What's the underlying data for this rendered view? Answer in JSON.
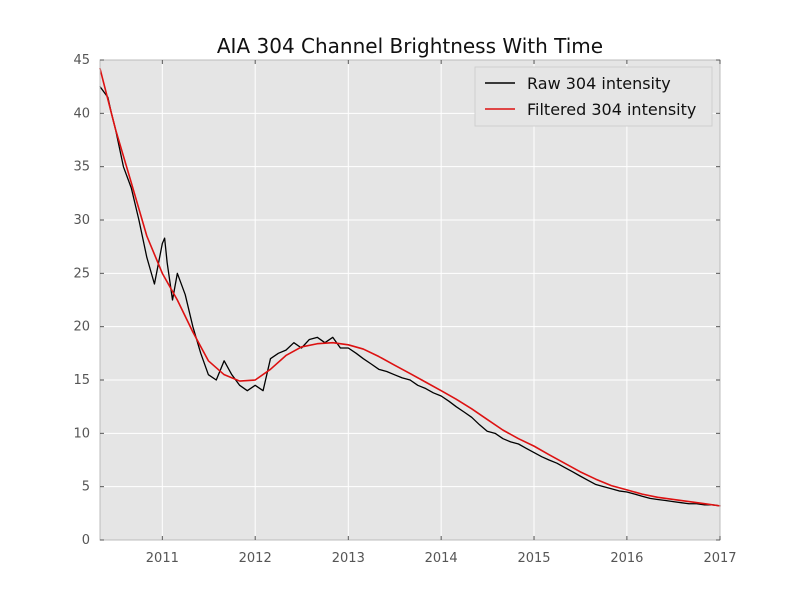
{
  "chart_data": {
    "type": "line",
    "title": "AIA 304 Channel Brightness With Time",
    "xlabel": "",
    "ylabel": "",
    "xlim": [
      "2010-05-01",
      "2017-01-01"
    ],
    "ylim": [
      0,
      45
    ],
    "xticks": [
      "2011",
      "2012",
      "2013",
      "2014",
      "2015",
      "2016",
      "2017"
    ],
    "yticks": [
      "0",
      "5",
      "10",
      "15",
      "20",
      "25",
      "30",
      "35",
      "40",
      "45"
    ],
    "grid": true,
    "legend": "upper right",
    "colors": {
      "raw": "#000000",
      "filtered": "#dd1111",
      "plot_background": "#e5e5e5",
      "grid": "#ffffff"
    },
    "series": [
      {
        "name": "Raw 304 intensity",
        "color": "#000000",
        "x": [
          "2010-05-01",
          "2010-06-01",
          "2010-06-15",
          "2010-07-01",
          "2010-08-01",
          "2010-09-01",
          "2010-10-01",
          "2010-11-01",
          "2010-12-01",
          "2011-01-01",
          "2011-01-10",
          "2011-01-20",
          "2011-02-10",
          "2011-03-01",
          "2011-04-01",
          "2011-05-01",
          "2011-06-01",
          "2011-07-01",
          "2011-08-01",
          "2011-09-01",
          "2011-10-01",
          "2011-11-01",
          "2011-12-01",
          "2012-01-01",
          "2012-02-01",
          "2012-03-01",
          "2012-04-01",
          "2012-05-01",
          "2012-06-01",
          "2012-07-01",
          "2012-08-01",
          "2012-09-01",
          "2012-10-01",
          "2012-11-01",
          "2012-12-01",
          "2013-01-01",
          "2013-02-01",
          "2013-03-01",
          "2013-04-01",
          "2013-05-01",
          "2013-06-01",
          "2013-07-01",
          "2013-08-01",
          "2013-09-01",
          "2013-10-01",
          "2013-11-01",
          "2013-12-01",
          "2014-01-01",
          "2014-02-01",
          "2014-03-01",
          "2014-04-01",
          "2014-05-01",
          "2014-06-01",
          "2014-07-01",
          "2014-08-01",
          "2014-09-01",
          "2014-10-01",
          "2014-11-01",
          "2014-12-01",
          "2015-01-01",
          "2015-02-01",
          "2015-03-01",
          "2015-04-01",
          "2015-05-01",
          "2015-06-01",
          "2015-07-01",
          "2015-08-01",
          "2015-09-01",
          "2015-10-01",
          "2015-11-01",
          "2015-12-01",
          "2016-01-01",
          "2016-02-01",
          "2016-03-01",
          "2016-04-01",
          "2016-05-01",
          "2016-06-01",
          "2016-07-01",
          "2016-08-01",
          "2016-09-01",
          "2016-10-01",
          "2016-11-01",
          "2016-12-01",
          "2017-01-01"
        ],
        "values": [
          42.5,
          41.5,
          40.0,
          38.5,
          35.0,
          33.0,
          30.0,
          26.5,
          24.0,
          27.8,
          28.3,
          26.0,
          22.5,
          25.0,
          23.0,
          20.0,
          17.5,
          15.5,
          15.0,
          16.8,
          15.5,
          14.5,
          14.0,
          14.5,
          14.0,
          17.0,
          17.5,
          17.8,
          18.5,
          18.0,
          18.8,
          19.0,
          18.5,
          19.0,
          18.0,
          18.0,
          17.5,
          17.0,
          16.5,
          16.0,
          15.8,
          15.5,
          15.2,
          15.0,
          14.5,
          14.2,
          13.8,
          13.5,
          13.0,
          12.5,
          12.0,
          11.5,
          10.8,
          10.2,
          10.0,
          9.5,
          9.2,
          9.0,
          8.6,
          8.2,
          7.8,
          7.5,
          7.2,
          6.8,
          6.4,
          6.0,
          5.6,
          5.2,
          5.0,
          4.8,
          4.6,
          4.5,
          4.3,
          4.1,
          3.9,
          3.8,
          3.7,
          3.6,
          3.5,
          3.4,
          3.4,
          3.3,
          3.3,
          3.2
        ]
      },
      {
        "name": "Filtered 304 intensity",
        "color": "#dd1111",
        "x": [
          "2010-05-01",
          "2010-07-01",
          "2010-09-01",
          "2010-11-01",
          "2011-01-01",
          "2011-03-01",
          "2011-05-01",
          "2011-07-01",
          "2011-09-01",
          "2011-11-01",
          "2012-01-01",
          "2012-03-01",
          "2012-05-01",
          "2012-07-01",
          "2012-09-01",
          "2012-11-01",
          "2013-01-01",
          "2013-03-01",
          "2013-05-01",
          "2013-07-01",
          "2013-09-01",
          "2013-11-01",
          "2014-01-01",
          "2014-03-01",
          "2014-05-01",
          "2014-07-01",
          "2014-09-01",
          "2014-11-01",
          "2015-01-01",
          "2015-03-01",
          "2015-05-01",
          "2015-07-01",
          "2015-09-01",
          "2015-11-01",
          "2016-01-01",
          "2016-03-01",
          "2016-05-01",
          "2016-07-01",
          "2016-09-01",
          "2016-11-01",
          "2017-01-01"
        ],
        "values": [
          44.2,
          38.5,
          33.5,
          28.5,
          25.0,
          22.5,
          19.5,
          16.8,
          15.5,
          14.9,
          15.0,
          16.0,
          17.3,
          18.1,
          18.4,
          18.5,
          18.3,
          17.9,
          17.2,
          16.4,
          15.6,
          14.8,
          14.0,
          13.2,
          12.3,
          11.3,
          10.3,
          9.5,
          8.8,
          8.0,
          7.2,
          6.4,
          5.7,
          5.1,
          4.7,
          4.3,
          4.0,
          3.8,
          3.6,
          3.4,
          3.2
        ]
      }
    ]
  }
}
